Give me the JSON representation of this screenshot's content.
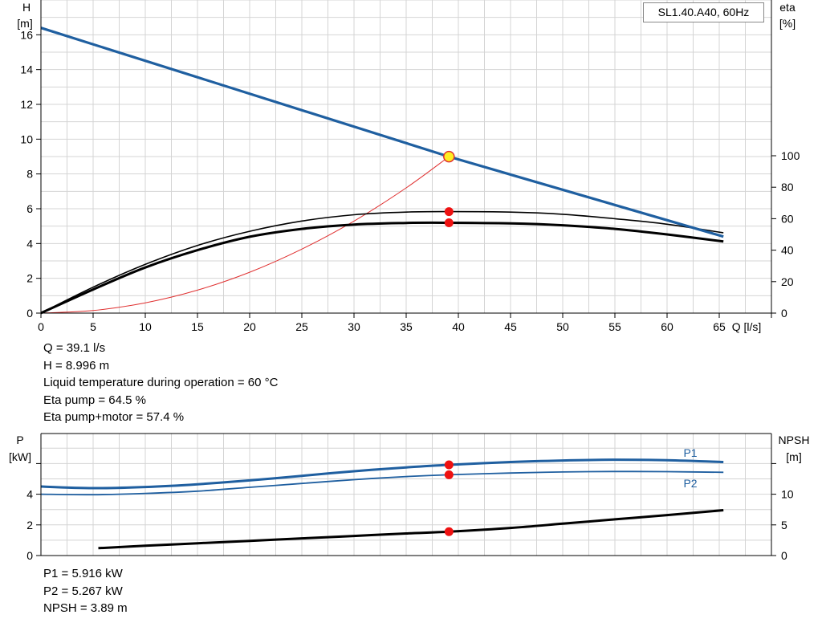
{
  "chart_data": [
    {
      "type": "line",
      "title": "SL1.40.A40, 60Hz",
      "xlabel": "Q [l/s]",
      "ylabel_left": "H\n[m]",
      "ylabel_right": "eta\n[%]",
      "xlim": [
        0,
        70
      ],
      "ylim_left": [
        0,
        18
      ],
      "ylim_right": [
        0,
        100
      ],
      "x_ticks": [
        0,
        5,
        10,
        15,
        20,
        25,
        30,
        35,
        40,
        45,
        50,
        55,
        60,
        65
      ],
      "y_ticks_left": [
        0,
        2,
        4,
        6,
        8,
        10,
        12,
        14,
        16
      ],
      "y_ticks_right": [
        0,
        20,
        40,
        60,
        80,
        100
      ],
      "grid": true,
      "series": [
        {
          "role": "head",
          "color": "#1f5fa0",
          "x": [
            0,
            39.1,
            65.4
          ],
          "y": [
            16.4,
            8.996,
            4.4
          ]
        },
        {
          "role": "eta-pump",
          "color": "#000000",
          "x": [
            0,
            5,
            10,
            15,
            20,
            25,
            30,
            35,
            39.1,
            45,
            50,
            55,
            60,
            65.4
          ],
          "y": [
            0,
            16.5,
            31,
            43,
            52,
            58.5,
            62.5,
            64.2,
            64.5,
            64.2,
            62.8,
            60,
            56.5,
            51
          ]
        },
        {
          "role": "eta-pump-motor",
          "color": "#000000",
          "x": [
            0,
            5,
            10,
            15,
            20,
            25,
            30,
            35,
            39.1,
            45,
            50,
            55,
            60,
            65.4
          ],
          "y": [
            0,
            15,
            29,
            40,
            48.5,
            53.5,
            56.3,
            57.3,
            57.4,
            57,
            55.8,
            53.5,
            50,
            45.5
          ]
        },
        {
          "role": "system-curve",
          "color": "#e03030",
          "x": [
            0,
            5,
            10,
            15,
            20,
            25,
            30,
            35,
            39.1
          ],
          "y": [
            0,
            0.15,
            0.59,
            1.32,
            2.35,
            3.68,
            5.29,
            7.2,
            8.996
          ]
        }
      ],
      "operating_point": {
        "q": 39.1,
        "h": 8.996,
        "eta_pump": 64.5,
        "eta_total": 57.4
      }
    },
    {
      "type": "line",
      "xlabel": "",
      "ylabel_left": "P\n[kW]",
      "ylabel_right": "NPSH\n[m]",
      "xlim": [
        0,
        70
      ],
      "ylim_left": [
        0,
        8
      ],
      "ylim_right": [
        0,
        20
      ],
      "y_ticks_left": [
        0,
        2,
        4
      ],
      "y_ticks_right": [
        0,
        5,
        10
      ],
      "grid": true,
      "series": [
        {
          "name": "P1",
          "color": "#1f5fa0",
          "x": [
            0,
            5,
            10,
            15,
            20,
            25,
            30,
            35,
            39.1,
            45,
            50,
            55,
            60,
            65.4
          ],
          "y": [
            4.5,
            4.4,
            4.47,
            4.65,
            4.9,
            5.2,
            5.5,
            5.75,
            5.916,
            6.1,
            6.2,
            6.25,
            6.22,
            6.1
          ]
        },
        {
          "name": "P2",
          "color": "#1f5fa0",
          "x": [
            0,
            5,
            10,
            15,
            20,
            25,
            30,
            35,
            39.1,
            45,
            50,
            55,
            60,
            65.4
          ],
          "y": [
            4.0,
            3.97,
            4.05,
            4.2,
            4.45,
            4.7,
            4.95,
            5.15,
            5.267,
            5.38,
            5.45,
            5.48,
            5.47,
            5.43
          ]
        },
        {
          "role": "npsh",
          "color": "#000000",
          "axis": "right",
          "x": [
            5.5,
            10,
            15,
            20,
            25,
            30,
            35,
            39.1,
            45,
            50,
            55,
            60,
            65.4
          ],
          "y": [
            1.2,
            1.6,
            2.0,
            2.4,
            2.8,
            3.2,
            3.6,
            3.89,
            4.5,
            5.2,
            5.9,
            6.6,
            7.4
          ]
        }
      ],
      "operating_point": {
        "q": 39.1,
        "p1": 5.916,
        "p2": 5.267,
        "npsh": 3.89
      }
    }
  ],
  "info_top": [
    "Q = 39.1 l/s",
    "H = 8.996 m",
    "Liquid temperature during operation = 60 °C",
    "Eta pump = 64.5 %",
    "Eta pump+motor = 57.4 %"
  ],
  "info_bottom": [
    "P1 = 5.916 kW",
    "P2 = 5.267 kW",
    "NPSH = 3.89 m"
  ]
}
